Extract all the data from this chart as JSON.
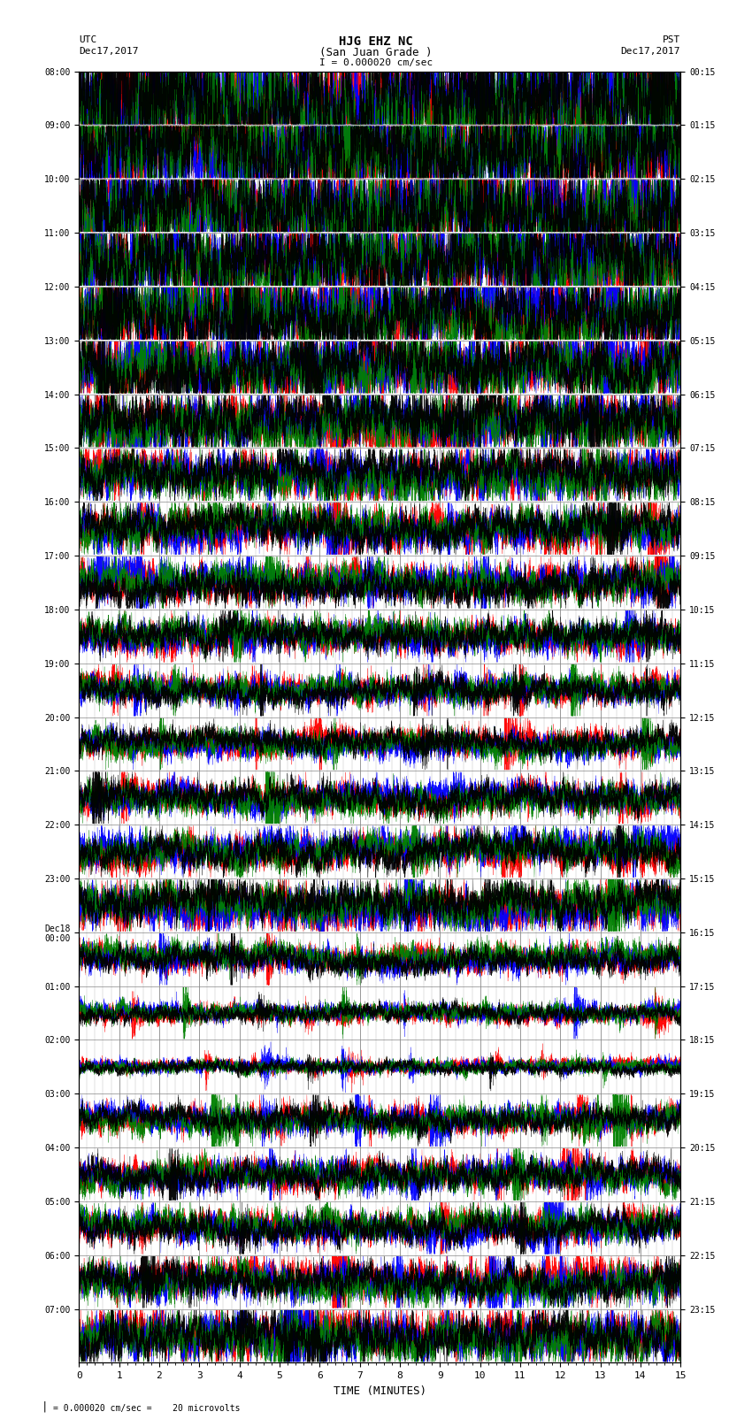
{
  "title_line1": "HJG EHZ NC",
  "title_line2": "(San Juan Grade )",
  "title_scale": "I = 0.000020 cm/sec",
  "left_label_top": "UTC",
  "left_label_date": "Dec17,2017",
  "right_label_top": "PST",
  "right_label_date": "Dec17,2017",
  "left_times": [
    "08:00",
    "09:00",
    "10:00",
    "11:00",
    "12:00",
    "13:00",
    "14:00",
    "15:00",
    "16:00",
    "17:00",
    "18:00",
    "19:00",
    "20:00",
    "21:00",
    "22:00",
    "23:00",
    "Dec18\n00:00",
    "01:00",
    "02:00",
    "03:00",
    "04:00",
    "05:00",
    "06:00",
    "07:00"
  ],
  "right_times": [
    "00:15",
    "01:15",
    "02:15",
    "03:15",
    "04:15",
    "05:15",
    "06:15",
    "07:15",
    "08:15",
    "09:15",
    "10:15",
    "11:15",
    "12:15",
    "13:15",
    "14:15",
    "15:15",
    "16:15",
    "17:15",
    "18:15",
    "19:15",
    "20:15",
    "21:15",
    "22:15",
    "23:15"
  ],
  "xlabel": "TIME (MINUTES)",
  "bottom_note": "= 0.000020 cm/sec =    20 microvolts",
  "xlim": [
    0,
    15
  ],
  "n_traces": 24,
  "background_color": "white",
  "grid_color": "#888888",
  "figsize": [
    8.5,
    16.13
  ],
  "dpi": 100,
  "amplitude_scales": [
    12,
    11,
    10,
    9,
    8,
    7,
    6,
    5,
    4.5,
    4.0,
    3.5,
    3.0,
    3.0,
    3.5,
    4.0,
    4.5,
    3.0,
    2.0,
    1.5,
    3.0,
    3.5,
    3.5,
    4.0,
    5.0
  ]
}
